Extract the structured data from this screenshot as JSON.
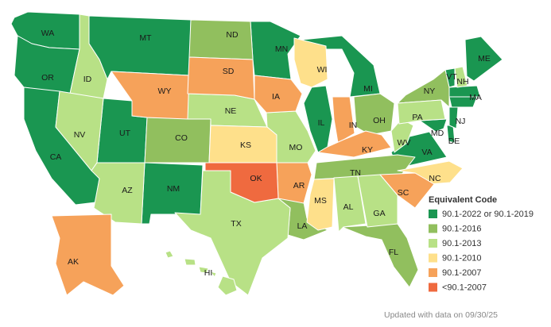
{
  "legend": {
    "title": "Equivalent Code",
    "items": [
      {
        "label": "90.1-2022 or 90.1-2019",
        "color": "#1a9651",
        "states": [
          "WA",
          "OR",
          "CA",
          "MT",
          "UT",
          "NM",
          "MN",
          "IL",
          "MI",
          "VA",
          "MD",
          "DE",
          "NJ",
          "MA",
          "VT",
          "ME"
        ]
      },
      {
        "label": "90.1-2016",
        "color": "#91bf5e",
        "states": [
          "ND",
          "CO",
          "OH",
          "NY",
          "TN",
          "LA",
          "FL"
        ]
      },
      {
        "label": "90.1-2013",
        "color": "#b8e186",
        "states": [
          "ID",
          "NV",
          "NE",
          "AZ",
          "MO",
          "TX",
          "WV",
          "PA",
          "AL",
          "GA",
          "NH",
          "HI"
        ]
      },
      {
        "label": "90.1-2010",
        "color": "#fee08b",
        "states": [
          "WI",
          "KS",
          "MS",
          "NC"
        ]
      },
      {
        "label": "90.1-2007",
        "color": "#f6a25a",
        "states": [
          "WY",
          "SD",
          "IA",
          "IN",
          "KY",
          "AR",
          "SC",
          "AK"
        ]
      },
      {
        "label": "<90.1-2007",
        "color": "#ef6a3f",
        "states": [
          "OK"
        ]
      }
    ]
  },
  "footer": "Updated with data on 09/30/25"
}
